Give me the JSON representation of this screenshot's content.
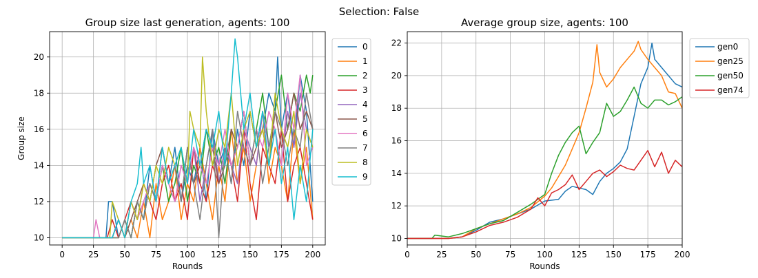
{
  "suptitle": "Selection: False",
  "chart_data": [
    {
      "type": "line",
      "title": "Group size last generation, agents: 100",
      "xlabel": "Rounds",
      "ylabel": "Group size",
      "xlim": [
        -10,
        210
      ],
      "ylim": [
        9.6,
        21.4
      ],
      "xticks": [
        0,
        25,
        50,
        75,
        100,
        125,
        150,
        175,
        200
      ],
      "yticks": [
        10,
        12,
        14,
        16,
        18,
        20
      ],
      "grid": true,
      "legend": "outside-top-right",
      "series": [
        {
          "name": "0",
          "color": "#1f77b4",
          "x": [
            0,
            35,
            37,
            40,
            45,
            50,
            55,
            60,
            65,
            70,
            75,
            80,
            85,
            90,
            95,
            100,
            105,
            110,
            115,
            120,
            125,
            130,
            135,
            140,
            145,
            150,
            155,
            160,
            165,
            170,
            172,
            175,
            180,
            185,
            190,
            195,
            200
          ],
          "y": [
            10,
            10,
            12,
            12,
            10,
            11,
            10,
            12,
            11,
            14,
            12,
            14,
            13,
            15,
            12,
            14,
            13,
            15,
            12,
            16,
            14,
            15,
            13,
            16,
            14,
            17,
            15,
            16,
            18,
            17,
            20,
            16,
            18,
            15,
            19,
            17,
            12
          ]
        },
        {
          "name": "1",
          "color": "#ff7f0e",
          "x": [
            0,
            40,
            45,
            50,
            55,
            60,
            65,
            70,
            75,
            80,
            85,
            90,
            95,
            100,
            105,
            110,
            115,
            120,
            125,
            130,
            135,
            140,
            145,
            150,
            155,
            160,
            165,
            170,
            175,
            180,
            185,
            190,
            195,
            200
          ],
          "y": [
            10,
            10,
            11,
            10,
            11,
            10,
            12,
            10,
            13,
            11,
            12,
            14,
            11,
            13,
            12,
            15,
            13,
            11,
            14,
            12,
            16,
            13,
            15,
            12,
            14,
            17,
            13,
            15,
            14,
            12,
            16,
            13,
            15,
            11
          ]
        },
        {
          "name": "2",
          "color": "#2ca02c",
          "x": [
            0,
            40,
            45,
            50,
            55,
            60,
            65,
            70,
            75,
            80,
            85,
            90,
            95,
            100,
            105,
            110,
            115,
            120,
            125,
            130,
            135,
            140,
            145,
            150,
            155,
            160,
            165,
            170,
            175,
            180,
            185,
            190,
            195,
            198,
            200
          ],
          "y": [
            10,
            10,
            10,
            11,
            10,
            12,
            11,
            13,
            12,
            14,
            12,
            13,
            15,
            12,
            14,
            13,
            16,
            14,
            15,
            13,
            16,
            15,
            17,
            14,
            16,
            18,
            15,
            17,
            19,
            16,
            18,
            17,
            19,
            18,
            19
          ]
        },
        {
          "name": "3",
          "color": "#d62728",
          "x": [
            0,
            36,
            40,
            45,
            50,
            55,
            60,
            65,
            70,
            75,
            80,
            85,
            90,
            95,
            100,
            105,
            110,
            115,
            120,
            125,
            130,
            135,
            140,
            145,
            150,
            155,
            160,
            165,
            170,
            175,
            180,
            185,
            190,
            195,
            200
          ],
          "y": [
            10,
            10,
            11,
            10,
            11,
            12,
            11,
            13,
            12,
            11,
            13,
            14,
            12,
            13,
            11,
            15,
            13,
            12,
            14,
            13,
            15,
            14,
            12,
            16,
            13,
            11,
            15,
            14,
            13,
            16,
            12,
            14,
            15,
            13,
            11
          ]
        },
        {
          "name": "4",
          "color": "#9467bd",
          "x": [
            0,
            40,
            45,
            50,
            55,
            60,
            65,
            70,
            75,
            80,
            85,
            90,
            95,
            100,
            105,
            110,
            115,
            120,
            125,
            130,
            135,
            140,
            145,
            150,
            155,
            160,
            165,
            170,
            175,
            180,
            185,
            190,
            195,
            200
          ],
          "y": [
            10,
            10,
            11,
            10,
            12,
            11,
            12,
            13,
            12,
            14,
            13,
            12,
            14,
            13,
            15,
            12,
            14,
            16,
            13,
            15,
            14,
            13,
            16,
            15,
            14,
            17,
            15,
            16,
            14,
            17,
            15,
            18,
            16,
            15
          ]
        },
        {
          "name": "5",
          "color": "#8c564b",
          "x": [
            0,
            40,
            45,
            50,
            55,
            60,
            65,
            70,
            75,
            80,
            85,
            90,
            95,
            100,
            105,
            110,
            115,
            120,
            125,
            130,
            135,
            140,
            145,
            150,
            155,
            160,
            165,
            170,
            175,
            180,
            185,
            190,
            195,
            200
          ],
          "y": [
            10,
            10,
            11,
            10,
            11,
            12,
            13,
            12,
            14,
            15,
            13,
            14,
            12,
            15,
            13,
            14,
            16,
            15,
            13,
            14,
            16,
            15,
            17,
            14,
            15,
            16,
            14,
            17,
            15,
            16,
            18,
            16,
            17,
            16
          ]
        },
        {
          "name": "6",
          "color": "#e377c2",
          "x": [
            0,
            25,
            27,
            30,
            40,
            45,
            50,
            55,
            60,
            65,
            70,
            75,
            80,
            85,
            90,
            95,
            100,
            105,
            110,
            115,
            120,
            125,
            130,
            135,
            140,
            145,
            150,
            155,
            160,
            165,
            170,
            175,
            180,
            185,
            190,
            195,
            200
          ],
          "y": [
            10,
            10,
            11,
            10,
            10,
            11,
            10,
            12,
            11,
            12,
            13,
            12,
            14,
            13,
            12,
            14,
            13,
            15,
            14,
            13,
            15,
            14,
            16,
            14,
            15,
            17,
            14,
            16,
            15,
            17,
            16,
            14,
            18,
            16,
            19,
            14,
            15
          ]
        },
        {
          "name": "7",
          "color": "#7f7f7f",
          "x": [
            0,
            40,
            45,
            50,
            55,
            60,
            65,
            70,
            75,
            80,
            85,
            90,
            95,
            100,
            105,
            110,
            115,
            120,
            125,
            130,
            135,
            140,
            145,
            150,
            155,
            160,
            165,
            170,
            175,
            180,
            185,
            190,
            195,
            200
          ],
          "y": [
            10,
            10,
            10,
            11,
            10,
            12,
            11,
            13,
            12,
            15,
            13,
            14,
            12,
            15,
            13,
            11,
            14,
            16,
            10,
            15,
            13,
            17,
            15,
            14,
            16,
            13,
            15,
            17,
            16,
            14,
            16,
            15,
            18,
            16
          ]
        },
        {
          "name": "8",
          "color": "#bcbd22",
          "x": [
            0,
            38,
            40,
            45,
            50,
            55,
            60,
            65,
            70,
            75,
            80,
            85,
            90,
            95,
            100,
            102,
            105,
            110,
            112,
            115,
            120,
            125,
            130,
            135,
            140,
            145,
            150,
            155,
            160,
            165,
            170,
            175,
            180,
            185,
            190,
            195,
            200
          ],
          "y": [
            10,
            10,
            12,
            11,
            10,
            12,
            11,
            13,
            12,
            14,
            13,
            15,
            14,
            15,
            13,
            17,
            16,
            15,
            20,
            17,
            14,
            16,
            15,
            18,
            14,
            16,
            17,
            15,
            16,
            14,
            18,
            16,
            15,
            17,
            13,
            16,
            15
          ]
        },
        {
          "name": "9",
          "color": "#17becf",
          "x": [
            0,
            40,
            45,
            50,
            55,
            60,
            63,
            65,
            70,
            75,
            80,
            85,
            90,
            95,
            100,
            105,
            110,
            115,
            120,
            125,
            130,
            135,
            138,
            140,
            145,
            150,
            155,
            160,
            165,
            170,
            175,
            180,
            185,
            190,
            195,
            200
          ],
          "y": [
            10,
            10,
            11,
            10,
            12,
            13,
            15,
            13,
            14,
            12,
            15,
            13,
            14,
            15,
            13,
            16,
            14,
            16,
            15,
            17,
            14,
            18,
            21,
            20,
            16,
            18,
            15,
            17,
            14,
            16,
            13,
            15,
            11,
            14,
            12,
            16
          ]
        }
      ]
    },
    {
      "type": "line",
      "title": "Average group size, agents: 100",
      "xlabel": "Rounds",
      "ylabel": "",
      "xlim": [
        0,
        200
      ],
      "ylim": [
        9.6,
        22.7
      ],
      "xticks": [
        0,
        25,
        50,
        75,
        100,
        125,
        150,
        175,
        200
      ],
      "yticks": [
        10,
        12,
        14,
        16,
        18,
        20,
        22
      ],
      "grid": true,
      "legend": "outside-top-right",
      "series": [
        {
          "name": "gen0",
          "color": "#1f77b4",
          "x": [
            0,
            20,
            30,
            40,
            50,
            60,
            70,
            80,
            90,
            100,
            110,
            115,
            120,
            125,
            130,
            135,
            140,
            145,
            150,
            155,
            160,
            165,
            170,
            175,
            178,
            180,
            185,
            190,
            195,
            200
          ],
          "y": [
            10,
            10,
            10,
            10.1,
            10.5,
            11,
            11.2,
            11.5,
            11.8,
            12.3,
            12.4,
            12.9,
            13.2,
            13.1,
            13,
            12.7,
            13.5,
            14,
            14.3,
            14.7,
            15.5,
            17.5,
            19.5,
            20.5,
            22,
            21,
            20.5,
            20,
            19.5,
            19.3
          ]
        },
        {
          "name": "gen25",
          "color": "#ff7f0e",
          "x": [
            0,
            20,
            30,
            40,
            50,
            60,
            70,
            80,
            90,
            100,
            105,
            110,
            115,
            120,
            125,
            130,
            135,
            138,
            140,
            145,
            150,
            155,
            160,
            165,
            168,
            170,
            175,
            180,
            185,
            190,
            195,
            200
          ],
          "y": [
            10,
            10,
            10,
            10.1,
            10.6,
            10.9,
            11.2,
            11.5,
            11.9,
            12.6,
            13.1,
            13.8,
            14.5,
            15.5,
            16.5,
            18,
            19.6,
            21.9,
            20.2,
            19.3,
            19.8,
            20.5,
            21,
            21.5,
            22.1,
            21.6,
            21,
            20.5,
            20,
            19,
            18.9,
            18
          ]
        },
        {
          "name": "gen50",
          "color": "#2ca02c",
          "x": [
            0,
            18,
            20,
            30,
            40,
            50,
            60,
            70,
            80,
            90,
            100,
            105,
            110,
            115,
            120,
            125,
            130,
            135,
            140,
            145,
            150,
            155,
            160,
            165,
            170,
            175,
            180,
            185,
            190,
            195,
            200
          ],
          "y": [
            10,
            10,
            10.2,
            10.1,
            10.3,
            10.6,
            10.9,
            11.1,
            11.6,
            12.1,
            12.7,
            14,
            15.1,
            15.9,
            16.5,
            16.9,
            15.2,
            15.9,
            16.5,
            18.3,
            17.5,
            17.8,
            18.5,
            19.3,
            18.3,
            18,
            18.5,
            18.5,
            18.2,
            18.4,
            18.7
          ]
        },
        {
          "name": "gen74",
          "color": "#d62728",
          "x": [
            0,
            20,
            30,
            40,
            50,
            60,
            70,
            80,
            90,
            95,
            100,
            105,
            110,
            115,
            120,
            125,
            130,
            135,
            140,
            145,
            150,
            155,
            160,
            165,
            170,
            175,
            180,
            185,
            190,
            195,
            200
          ],
          "y": [
            10,
            10,
            10,
            10.1,
            10.4,
            10.8,
            11,
            11.3,
            11.8,
            12.5,
            12,
            12.8,
            13,
            13.3,
            13.9,
            13,
            13.5,
            14,
            14.2,
            13.8,
            14.1,
            14.5,
            14.3,
            14.2,
            14.8,
            15.4,
            14.4,
            15.3,
            14,
            14.8,
            14.4
          ]
        }
      ]
    }
  ]
}
